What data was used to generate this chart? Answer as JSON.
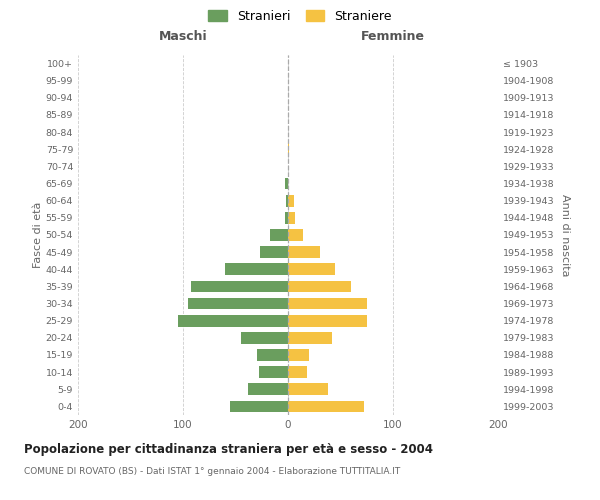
{
  "age_groups": [
    "0-4",
    "5-9",
    "10-14",
    "15-19",
    "20-24",
    "25-29",
    "30-34",
    "35-39",
    "40-44",
    "45-49",
    "50-54",
    "55-59",
    "60-64",
    "65-69",
    "70-74",
    "75-79",
    "80-84",
    "85-89",
    "90-94",
    "95-99",
    "100+"
  ],
  "birth_years": [
    "1999-2003",
    "1994-1998",
    "1989-1993",
    "1984-1988",
    "1979-1983",
    "1974-1978",
    "1969-1973",
    "1964-1968",
    "1959-1963",
    "1954-1958",
    "1949-1953",
    "1944-1948",
    "1939-1943",
    "1934-1938",
    "1929-1933",
    "1924-1928",
    "1919-1923",
    "1914-1918",
    "1909-1913",
    "1904-1908",
    "≤ 1903"
  ],
  "maschi": [
    55,
    38,
    28,
    30,
    45,
    105,
    95,
    92,
    60,
    27,
    17,
    3,
    2,
    3,
    0,
    0,
    0,
    0,
    0,
    0,
    0
  ],
  "femmine": [
    72,
    38,
    18,
    20,
    42,
    75,
    75,
    60,
    45,
    30,
    14,
    7,
    6,
    0,
    0,
    1,
    0,
    0,
    0,
    0,
    0
  ],
  "maschi_color": "#6a9e5e",
  "femmine_color": "#f5c242",
  "background_color": "#ffffff",
  "grid_color": "#cccccc",
  "title": "Popolazione per cittadinanza straniera per età e sesso - 2004",
  "subtitle": "COMUNE DI ROVATO (BS) - Dati ISTAT 1° gennaio 2004 - Elaborazione TUTTITALIA.IT",
  "label_maschi": "Maschi",
  "label_femmine": "Femmine",
  "ylabel_left": "Fasce di età",
  "ylabel_right": "Anni di nascita",
  "legend_stranieri": "Stranieri",
  "legend_straniere": "Straniere",
  "xlim": 200,
  "xticks": [
    -200,
    -100,
    0,
    100,
    200
  ],
  "xticklabels": [
    "200",
    "100",
    "0",
    "100",
    "200"
  ]
}
